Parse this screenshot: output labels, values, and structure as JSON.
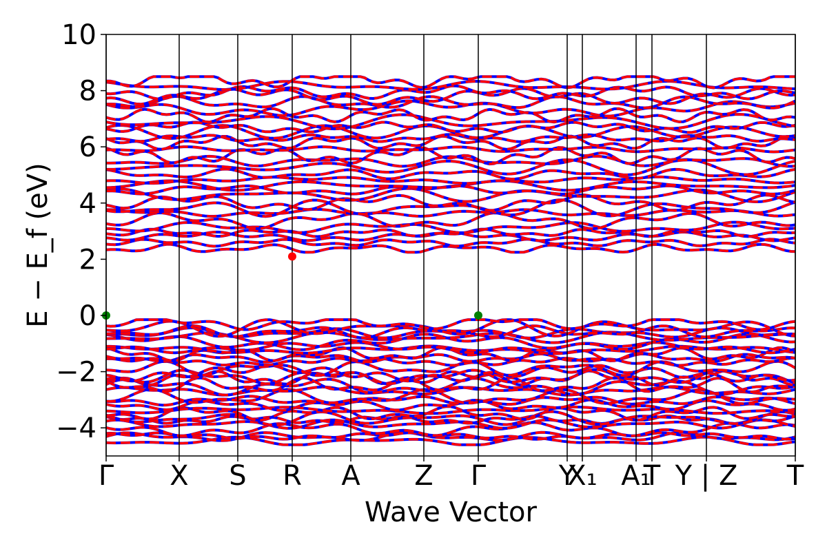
{
  "chart_data": {
    "type": "line",
    "title": "",
    "xlabel": "Wave Vector",
    "ylabel": "E − E_f (eV)",
    "ylim": [
      -5,
      10
    ],
    "yticks": [
      -4,
      -2,
      0,
      2,
      4,
      6,
      8,
      10
    ],
    "grid": false,
    "legend": "none",
    "kpoints": [
      {
        "label": "Γ",
        "x": 0.0
      },
      {
        "label": "X",
        "x": 0.106
      },
      {
        "label": "S",
        "x": 0.191
      },
      {
        "label": "R",
        "x": 0.27
      },
      {
        "label": "A",
        "x": 0.355
      },
      {
        "label": "Z",
        "x": 0.461
      },
      {
        "label": "Γ",
        "x": 0.54
      },
      {
        "label": "Y",
        "x": 0.669
      },
      {
        "label": "X₁",
        "x": 0.691
      },
      {
        "label": "A₁",
        "x": 0.769
      },
      {
        "label": "T",
        "x": 0.792
      },
      {
        "label": "Y | Z",
        "x": 0.871
      },
      {
        "label": "T",
        "x": 1.0
      }
    ],
    "series": [
      {
        "color": "#0000ff",
        "style": "solid"
      },
      {
        "color": "#ff0000",
        "style": "dashed"
      }
    ],
    "valence_band_maximum": [
      {
        "x": 0.0,
        "y": 0.0
      },
      {
        "x": 0.54,
        "y": 0.0
      }
    ],
    "conduction_band_minimum": [
      {
        "x": 0.27,
        "y": 2.1
      }
    ],
    "band_gap_eV": 2.1,
    "valence_band_range": [
      -4.6,
      0.0
    ],
    "conduction_band_range": [
      2.1,
      8.6
    ],
    "colors": {
      "vbm_marker": "#008000",
      "cbm_marker": "#ff0000",
      "axis": "#000000"
    }
  }
}
